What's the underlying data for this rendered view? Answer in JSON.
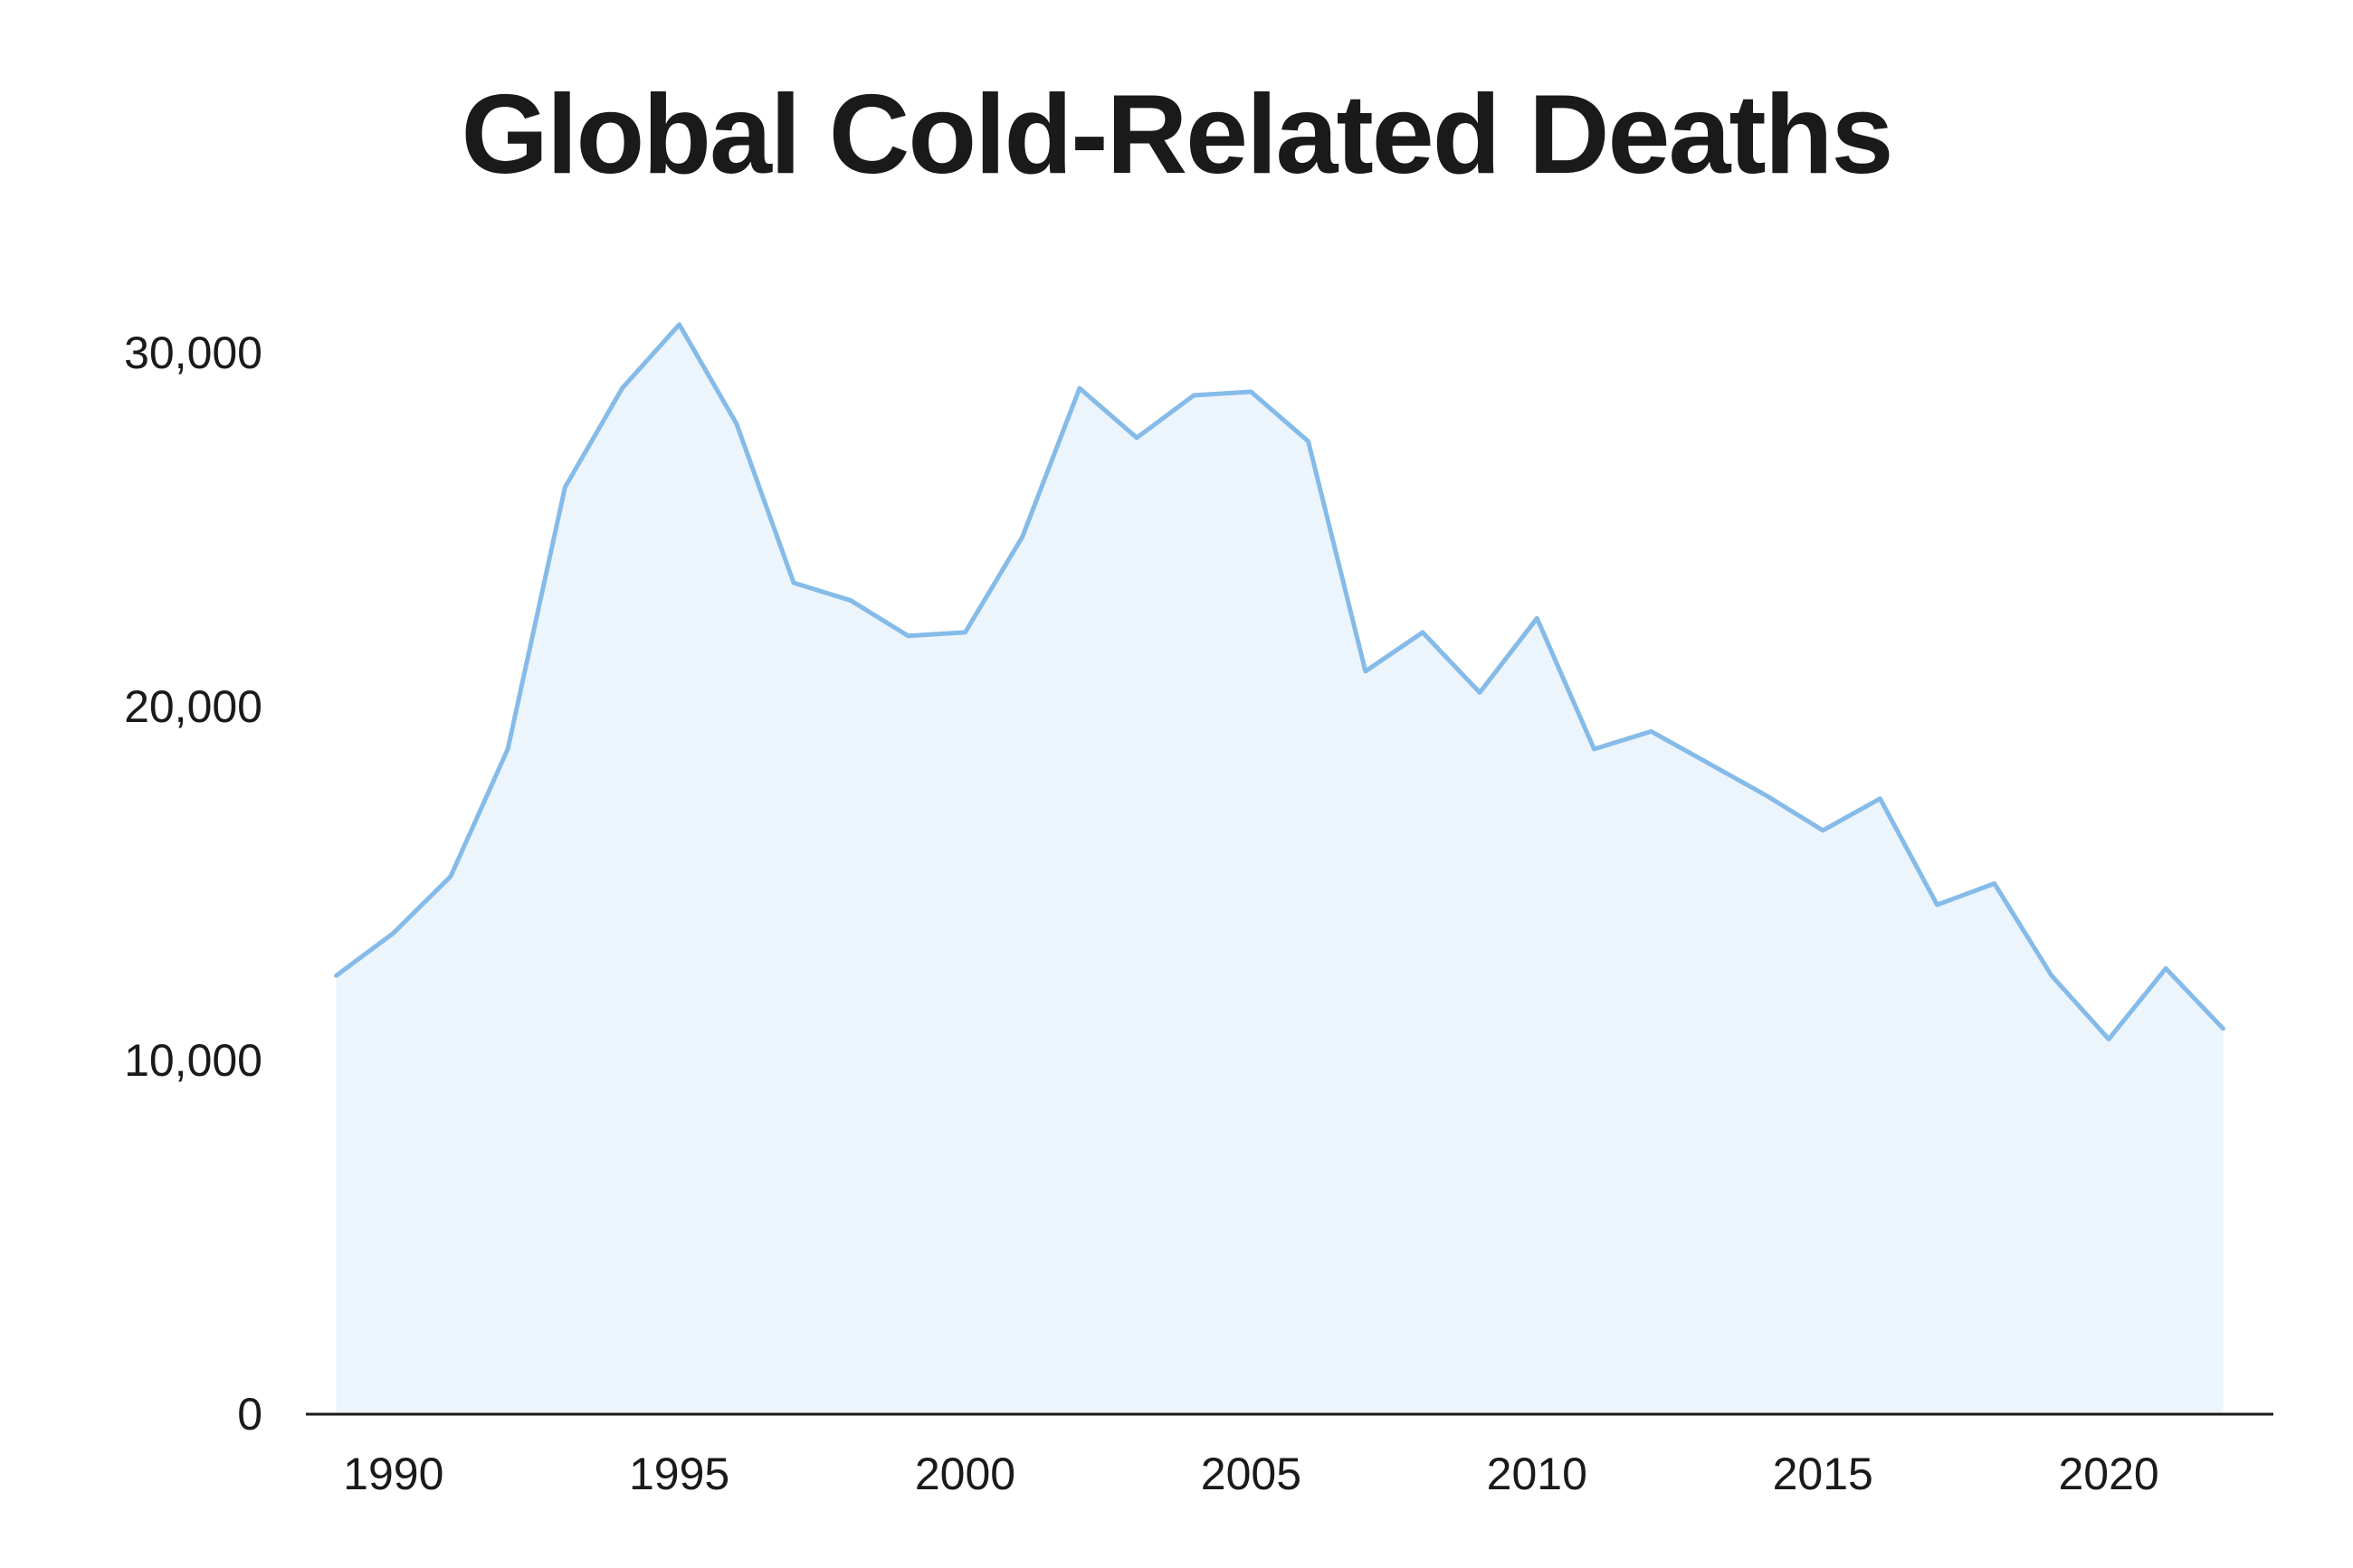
{
  "chart_data": {
    "type": "area",
    "title": "Global Cold-Related Deaths",
    "xlabel": "",
    "ylabel": "",
    "x": [
      1989,
      1990,
      1991,
      1992,
      1993,
      1994,
      1995,
      1996,
      1997,
      1998,
      1999,
      2000,
      2001,
      2002,
      2003,
      2004,
      2005,
      2006,
      2007,
      2008,
      2009,
      2010,
      2011,
      2012,
      2013,
      2014,
      2015,
      2016,
      2017,
      2018,
      2019,
      2020,
      2021,
      2022
    ],
    "series": [
      {
        "name": "",
        "values": [
          12400,
          13600,
          15200,
          18800,
          26200,
          29000,
          30800,
          28000,
          23500,
          23000,
          22000,
          22100,
          24800,
          29000,
          27600,
          28800,
          28900,
          27500,
          21000,
          22100,
          20400,
          22500,
          18800,
          19300,
          18400,
          17500,
          16500,
          17400,
          14400,
          15000,
          12400,
          10600,
          12600,
          10900
        ]
      }
    ],
    "xlim": [
      1988.5,
      2022.5
    ],
    "ylim": [
      0,
      30000
    ],
    "x_ticks": [
      1990,
      1995,
      2000,
      2005,
      2010,
      2015,
      2020
    ],
    "x_tick_labels": [
      "1990",
      "1995",
      "2000",
      "2005",
      "2010",
      "2015",
      "2020"
    ],
    "y_ticks": [
      0,
      10000,
      20000,
      30000
    ],
    "y_tick_labels": [
      "0",
      "10,000",
      "20,000",
      "30,000"
    ],
    "grid": false,
    "colors": {
      "line": "#85bbe8",
      "fill": "#ecf4fc",
      "axis": "#1a1a1a",
      "text": "#1a1a1a"
    }
  }
}
